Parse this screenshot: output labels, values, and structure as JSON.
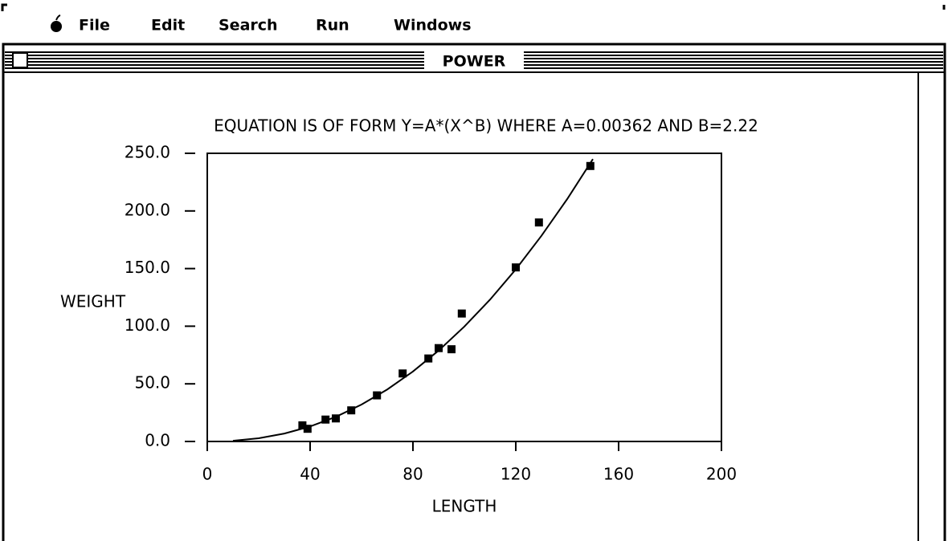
{
  "menu": [
    "File",
    "Edit",
    "Search",
    "Run",
    "Windows"
  ],
  "window_title": "POWER",
  "chart_data": {
    "type": "scatter",
    "title": "EQUATION IS OF FORM Y=A*(X^B) WHERE  A=0.00362  AND  B=2.22",
    "x_label": "LENGTH",
    "y_label": "WEIGHT",
    "xlim": [
      0,
      200
    ],
    "xticks": [
      0,
      40,
      80,
      120,
      160,
      200
    ],
    "ylim": [
      0,
      250
    ],
    "yticks": [
      {
        "value": 0,
        "label": "0.0"
      },
      {
        "value": 50,
        "label": "50.0"
      },
      {
        "value": 100,
        "label": "100.0"
      },
      {
        "value": 150,
        "label": "150.0"
      },
      {
        "value": 200,
        "label": "200.0"
      },
      {
        "value": 250,
        "label": "250.0"
      }
    ],
    "series": [
      {
        "type": "scatter",
        "color": "#000000",
        "x": [
          37,
          39,
          46,
          50,
          56,
          66,
          76,
          86,
          90,
          95,
          99,
          120,
          129,
          149
        ],
        "values": [
          14,
          11,
          19,
          20,
          27,
          40,
          59,
          72,
          81,
          80,
          111,
          151,
          190,
          239
        ]
      },
      {
        "type": "line",
        "color": "#000000",
        "x": [
          10,
          20,
          30,
          40,
          50,
          60,
          70,
          80,
          90,
          100,
          110,
          120,
          130,
          140,
          150
        ],
        "values": [
          0.6,
          2.8,
          6.9,
          13.0,
          21.4,
          32.0,
          45.1,
          60.7,
          78.9,
          99.7,
          123.1,
          149.3,
          178.5,
          210.3,
          245
        ]
      }
    ]
  }
}
